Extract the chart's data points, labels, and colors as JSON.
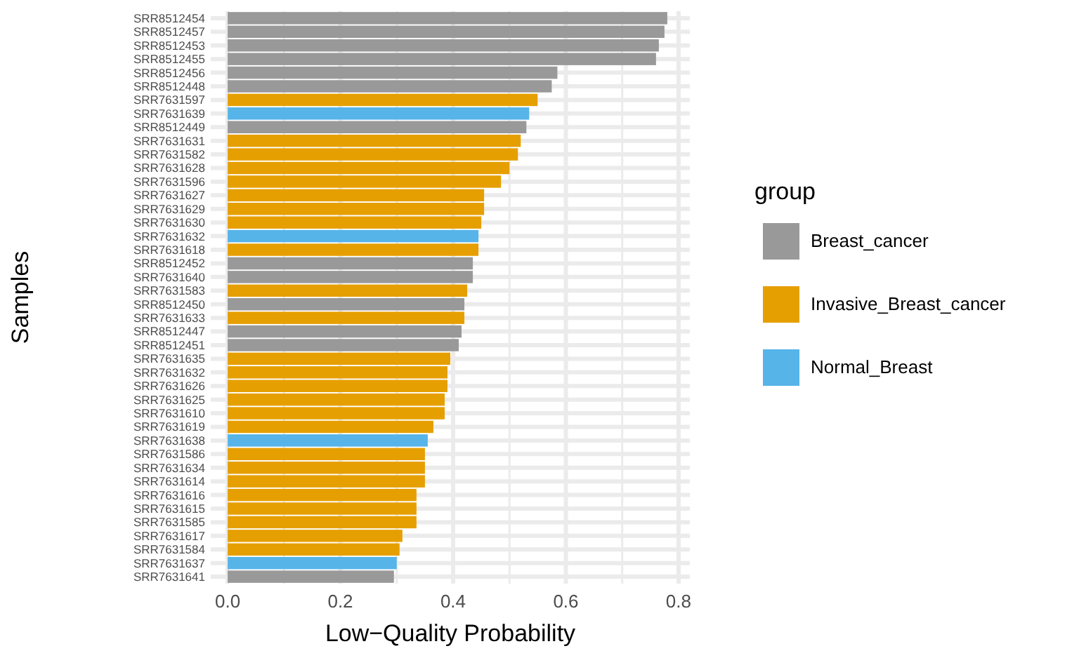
{
  "chart_data": {
    "type": "bar",
    "orientation": "horizontal",
    "xlabel": "Low−Quality Probability",
    "ylabel": "Samples",
    "legend_title": "group",
    "legend": "right",
    "grid": true,
    "categories": [
      "SRR8512454",
      "SRR8512457",
      "SRR8512453",
      "SRR8512455",
      "SRR8512456",
      "SRR8512448",
      "SRR7631597",
      "SRR7631639",
      "SRR8512449",
      "SRR7631631",
      "SRR7631582",
      "SRR7631628",
      "SRR7631596",
      "SRR7631627",
      "SRR7631629",
      "SRR7631630",
      "SRR7631632",
      "SRR7631618",
      "SRR8512452",
      "SRR7631640",
      "SRR7631583",
      "SRR8512450",
      "SRR7631633",
      "SRR8512447",
      "SRR8512451",
      "SRR7631635",
      "SRR7631632",
      "SRR7631626",
      "SRR7631625",
      "SRR7631610",
      "SRR7631619",
      "SRR7631638",
      "SRR7631586",
      "SRR7631634",
      "SRR7631614",
      "SRR7631616",
      "SRR7631615",
      "SRR7631585",
      "SRR7631617",
      "SRR7631584",
      "SRR7631637",
      "SRR7631641"
    ],
    "series": [
      {
        "name": "Breast_cancer",
        "color": "#999999",
        "values": [
          0.78,
          0.775,
          0.765,
          0.76,
          0.585,
          0.575,
          null,
          null,
          0.53,
          null,
          null,
          null,
          null,
          null,
          null,
          null,
          null,
          null,
          0.435,
          0.435,
          null,
          0.42,
          null,
          0.415,
          0.41,
          null,
          null,
          null,
          null,
          null,
          null,
          null,
          null,
          null,
          null,
          null,
          null,
          null,
          null,
          null,
          null,
          0.295
        ]
      },
      {
        "name": "Invasive_Breast_cancer",
        "color": "#e69f00",
        "values": [
          null,
          null,
          null,
          null,
          null,
          null,
          0.55,
          null,
          null,
          0.52,
          0.515,
          0.5,
          0.485,
          0.455,
          0.455,
          0.45,
          null,
          0.445,
          null,
          null,
          0.425,
          null,
          0.42,
          null,
          null,
          0.395,
          0.39,
          0.39,
          0.385,
          0.385,
          0.365,
          null,
          0.35,
          0.35,
          0.35,
          0.335,
          0.335,
          0.335,
          0.31,
          0.305,
          null,
          null
        ]
      },
      {
        "name": "Normal_Breast",
        "color": "#56b4e9",
        "values": [
          null,
          null,
          null,
          null,
          null,
          null,
          null,
          0.535,
          null,
          null,
          null,
          null,
          null,
          null,
          null,
          null,
          0.445,
          null,
          null,
          null,
          null,
          null,
          null,
          null,
          null,
          null,
          null,
          null,
          null,
          null,
          null,
          0.355,
          null,
          null,
          null,
          null,
          null,
          null,
          null,
          null,
          0.3,
          null
        ]
      }
    ],
    "xlim": [
      -0.03,
      0.82
    ],
    "xticks": [
      {
        "value": 0,
        "label": "0.0"
      },
      {
        "value": 0.2,
        "label": "0.2"
      },
      {
        "value": 0.4,
        "label": "0.4"
      },
      {
        "value": 0.6,
        "label": "0.6"
      },
      {
        "value": 0.8,
        "label": "0.8"
      }
    ]
  }
}
